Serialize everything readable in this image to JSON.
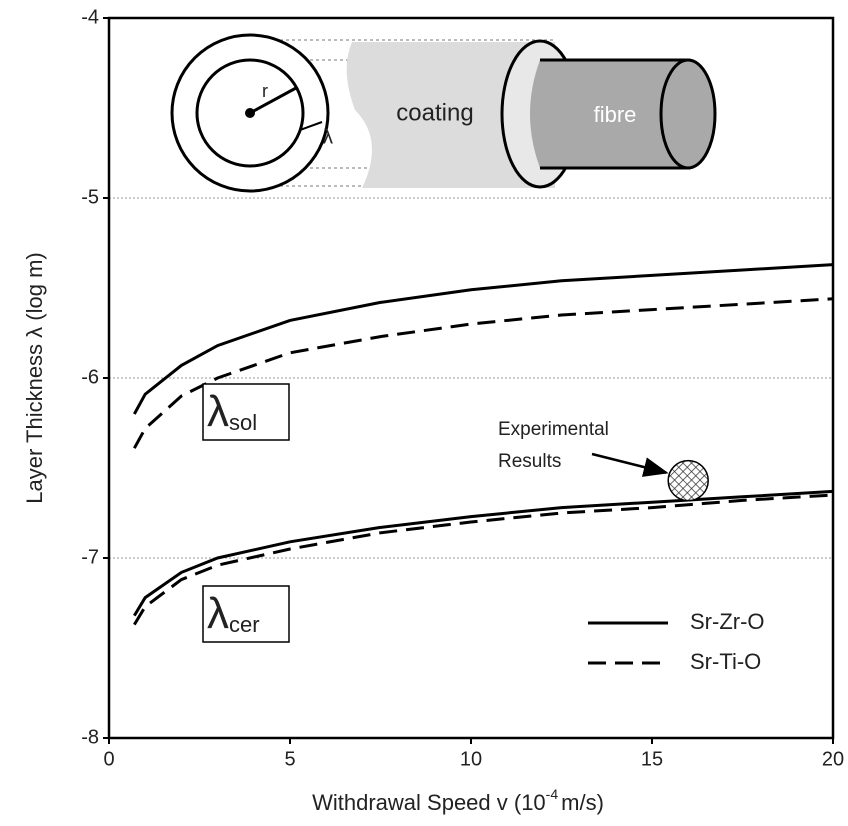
{
  "chart_data": {
    "type": "line",
    "x_label": {
      "text": "Withdrawal Speed v (10",
      "superscript": "-4",
      "unit": "m/s)"
    },
    "y_label": "Layer Thickness λ  (log m)",
    "x": [
      0.7,
      1,
      2,
      3,
      5,
      7.5,
      10,
      12.5,
      15,
      17.5,
      20
    ],
    "series": [
      {
        "color": "#000000",
        "style": "solid",
        "values": [
          -6.2,
          -6.09,
          -5.93,
          -5.82,
          -5.68,
          -5.58,
          -5.51,
          -5.46,
          -5.43,
          -5.4,
          -5.37
        ]
      },
      {
        "color": "#000000",
        "style": "dashed",
        "values": [
          -6.39,
          -6.28,
          -6.1,
          -6.0,
          -5.86,
          -5.77,
          -5.7,
          -5.65,
          -5.62,
          -5.59,
          -5.56
        ]
      },
      {
        "color": "#000000",
        "style": "solid",
        "values": [
          -7.32,
          -7.22,
          -7.08,
          -7.0,
          -6.91,
          -6.83,
          -6.77,
          -6.72,
          -6.69,
          -6.66,
          -6.63
        ]
      },
      {
        "color": "#000000",
        "style": "dashed",
        "values": [
          -7.37,
          -7.27,
          -7.12,
          -7.04,
          -6.95,
          -6.86,
          -6.8,
          -6.75,
          -6.72,
          -6.68,
          -6.65
        ]
      }
    ],
    "legend": [
      {
        "name": "Sr-Zr-O",
        "style": "solid"
      },
      {
        "name": "Sr-Ti-O",
        "style": "dashed"
      }
    ],
    "curve_labels": [
      {
        "symbol": "λ",
        "subscript": "sol"
      },
      {
        "symbol": "λ",
        "subscript": "cer"
      }
    ],
    "experimental": {
      "x": 16,
      "y": -6.57,
      "label": [
        "Experimental",
        "Results"
      ]
    },
    "inset": {
      "radius": "r",
      "thickness": "λ",
      "coating": "coating",
      "fibre": "fibre"
    },
    "xlim": [
      0,
      20
    ],
    "ylim": [
      -8,
      -4
    ],
    "xticks": [
      0,
      5,
      10,
      15,
      20
    ],
    "yticks": [
      -8,
      -7,
      -6,
      -5,
      -4
    ],
    "grid": true
  }
}
